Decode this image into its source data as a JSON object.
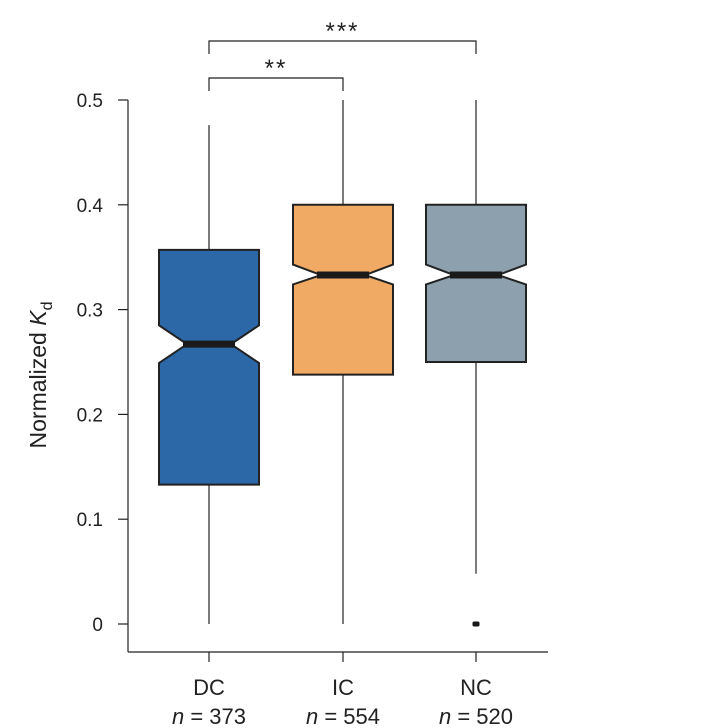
{
  "chart_data": {
    "type": "boxplot",
    "notched": true,
    "ylabel_main": "Normalized ",
    "ylabel_italic": "K",
    "ylabel_sub": "d",
    "ylim": [
      0,
      0.5
    ],
    "yticks": [
      0,
      0.1,
      0.2,
      0.3,
      0.4,
      0.5
    ],
    "ytick_labels": [
      "0",
      "0.1",
      "0.2",
      "0.3",
      "0.4",
      "0.5"
    ],
    "n_prefix": "n",
    "groups": [
      {
        "label": "DC",
        "n_text": " = 373",
        "color": "#2c67a8",
        "whisker_low": 0.0,
        "q1": 0.133,
        "median": 0.267,
        "q3": 0.357,
        "whisker_high": 0.476,
        "notch_low": 0.249,
        "notch_high": 0.285,
        "outliers": []
      },
      {
        "label": "IC",
        "n_text": " = 554",
        "color": "#f0aa64",
        "whisker_low": 0.0,
        "q1": 0.238,
        "median": 0.333,
        "q3": 0.4,
        "whisker_high": 0.5,
        "notch_low": 0.324,
        "notch_high": 0.343,
        "outliers": []
      },
      {
        "label": "NC",
        "n_text": " = 520",
        "color": "#8ca0ae",
        "whisker_low": 0.048,
        "q1": 0.25,
        "median": 0.333,
        "q3": 0.4,
        "whisker_high": 0.5,
        "notch_low": 0.324,
        "notch_high": 0.343,
        "outliers": [
          0.0
        ]
      }
    ],
    "significance": [
      {
        "from": 0,
        "to": 1,
        "label": "**"
      },
      {
        "from": 0,
        "to": 2,
        "label": "***"
      }
    ]
  }
}
